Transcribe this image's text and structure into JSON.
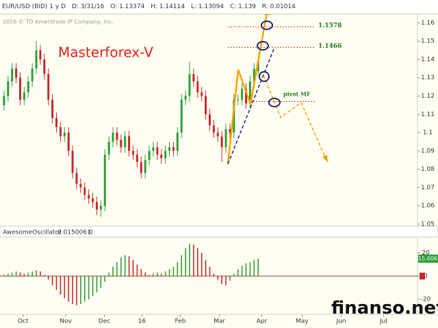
{
  "header": {
    "symbol": "EUR/USD (BID) 1 y D",
    "date": "D: 3/31/16",
    "open": "O: 1.13374",
    "high": "H: 1.14114",
    "low": "L: 1.13094",
    "close": "C: 1.139",
    "range": "R: 0.01014"
  },
  "watermark": "2016 © TD Ameritrade IP Company, Inc.",
  "annotation": "Masterforex-V",
  "site": "finanso.net",
  "chart_data": [
    {
      "type": "candlestick",
      "open": [
        1.115,
        1.12,
        1.128,
        1.135,
        1.13,
        1.118,
        1.122,
        1.128,
        1.135,
        1.145,
        1.14,
        1.132,
        1.118,
        1.108,
        1.103,
        1.098,
        1.1,
        1.09,
        1.078,
        1.072,
        1.07,
        1.066,
        1.064,
        1.062,
        1.058,
        1.06,
        1.088,
        1.095,
        1.1,
        1.096,
        1.092,
        1.098,
        1.09,
        1.088,
        1.084,
        1.078,
        1.085,
        1.09,
        1.092,
        1.088,
        1.086,
        1.09,
        1.092,
        1.09,
        1.1,
        1.118,
        1.12,
        1.132,
        1.128,
        1.122,
        1.12,
        1.11,
        1.104,
        1.1,
        1.098,
        1.092,
        1.102,
        1.1,
        1.118,
        1.118,
        1.124,
        1.116,
        1.128,
        1.1337
      ],
      "high": [
        1.123,
        1.131,
        1.138,
        1.138,
        1.133,
        1.125,
        1.131,
        1.138,
        1.15,
        1.148,
        1.143,
        1.135,
        1.121,
        1.111,
        1.106,
        1.103,
        1.103,
        1.093,
        1.081,
        1.075,
        1.073,
        1.069,
        1.067,
        1.065,
        1.063,
        1.091,
        1.098,
        1.103,
        1.103,
        1.099,
        1.101,
        1.101,
        1.093,
        1.091,
        1.087,
        1.088,
        1.093,
        1.095,
        1.095,
        1.091,
        1.093,
        1.095,
        1.095,
        1.103,
        1.121,
        1.123,
        1.139,
        1.135,
        1.131,
        1.125,
        1.123,
        1.113,
        1.107,
        1.103,
        1.101,
        1.105,
        1.105,
        1.121,
        1.121,
        1.127,
        1.127,
        1.131,
        1.138,
        1.1411
      ],
      "low": [
        1.112,
        1.117,
        1.125,
        1.127,
        1.115,
        1.115,
        1.119,
        1.125,
        1.132,
        1.137,
        1.129,
        1.115,
        1.105,
        1.1,
        1.095,
        1.095,
        1.087,
        1.075,
        1.069,
        1.067,
        1.063,
        1.061,
        1.059,
        1.055,
        1.054,
        1.057,
        1.085,
        1.092,
        1.093,
        1.089,
        1.089,
        1.087,
        1.085,
        1.081,
        1.075,
        1.075,
        1.082,
        1.087,
        1.085,
        1.083,
        1.083,
        1.087,
        1.087,
        1.087,
        1.097,
        1.115,
        1.117,
        1.125,
        1.119,
        1.117,
        1.107,
        1.101,
        1.097,
        1.095,
        1.084,
        1.089,
        1.097,
        1.097,
        1.115,
        1.115,
        1.113,
        1.113,
        1.125,
        1.1309
      ],
      "close": [
        1.12,
        1.128,
        1.135,
        1.13,
        1.118,
        1.122,
        1.128,
        1.135,
        1.145,
        1.14,
        1.132,
        1.118,
        1.108,
        1.103,
        1.098,
        1.1,
        1.09,
        1.078,
        1.072,
        1.07,
        1.066,
        1.064,
        1.062,
        1.058,
        1.06,
        1.088,
        1.095,
        1.1,
        1.096,
        1.092,
        1.098,
        1.09,
        1.088,
        1.084,
        1.078,
        1.085,
        1.09,
        1.092,
        1.088,
        1.086,
        1.09,
        1.092,
        1.09,
        1.1,
        1.118,
        1.12,
        1.132,
        1.128,
        1.122,
        1.12,
        1.11,
        1.104,
        1.1,
        1.098,
        1.092,
        1.102,
        1.1,
        1.118,
        1.118,
        1.124,
        1.116,
        1.128,
        1.135,
        1.139
      ],
      "up_color": "#2e9b3a",
      "down_color": "#c62828",
      "ylim": [
        1.05,
        1.165
      ],
      "yticks": [
        1.05,
        1.06,
        1.07,
        1.08,
        1.09,
        1.1,
        1.11,
        1.12,
        1.13,
        1.14,
        1.15,
        1.16
      ],
      "xlim": [
        -1,
        102.5
      ],
      "levels": [
        1.1578,
        1.1466
      ],
      "pivot": {
        "label": "pivot MF",
        "value": 1.117
      },
      "level_color": "#d32f2f"
    },
    {
      "type": "bar",
      "title": "AwesomeOscillator",
      "value_text": "0.0150061",
      "offset_text": "0",
      "values": [
        1,
        2,
        3,
        4,
        3,
        2,
        3,
        4,
        5,
        4,
        1,
        -3,
        -8,
        -12,
        -16,
        -19,
        -22,
        -24,
        -25,
        -24,
        -22,
        -20,
        -17,
        -14,
        -10,
        -5,
        3,
        8,
        12,
        16,
        18,
        17,
        14,
        10,
        6,
        3,
        1,
        2,
        3,
        2,
        4,
        6,
        8,
        12,
        18,
        24,
        28,
        27,
        24,
        20,
        14,
        8,
        2,
        -3,
        -7,
        -8,
        -4,
        2,
        6,
        9,
        11,
        12,
        14,
        15.006
      ],
      "up_color": "#2e9b3a",
      "down_color": "#c62828",
      "ylim": [
        -30,
        33
      ],
      "yticks": [
        -20,
        0,
        20
      ],
      "xlim": [
        -1,
        102.5
      ],
      "xticks": [
        {
          "value": 4.7,
          "label": "Oct"
        },
        {
          "value": 15.3,
          "label": "Nov"
        },
        {
          "value": 24.9,
          "label": "Dec"
        },
        {
          "value": 34.2,
          "label": "16"
        },
        {
          "value": 43.7,
          "label": "Feb"
        },
        {
          "value": 53.4,
          "label": "Mar"
        },
        {
          "value": 63.9,
          "label": "Apr"
        },
        {
          "value": 73.9,
          "label": "May"
        },
        {
          "value": 83.6,
          "label": "Jun"
        },
        {
          "value": 94.1,
          "label": "Jul"
        }
      ]
    }
  ]
}
